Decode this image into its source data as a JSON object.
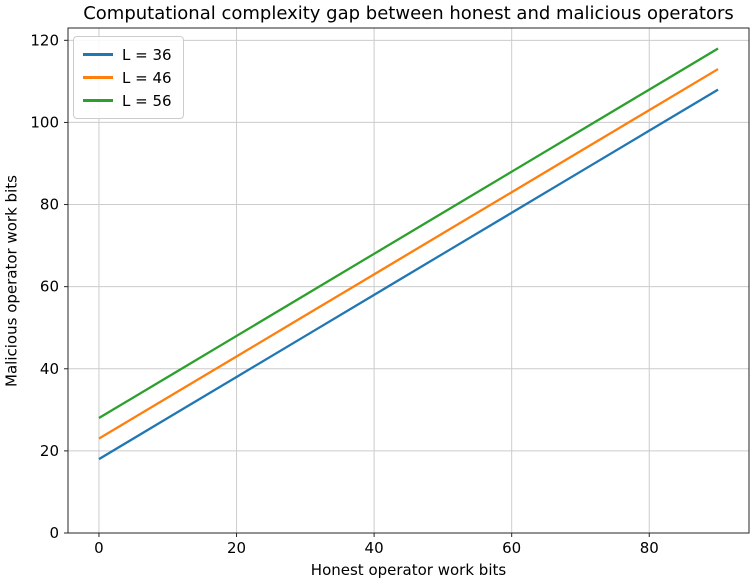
{
  "chart_data": {
    "type": "line",
    "title": "Computational complexity gap between honest and malicious operators",
    "xlabel": "Honest operator work bits",
    "ylabel": "Malicious operator work bits",
    "x": [
      0,
      10,
      20,
      30,
      40,
      50,
      60,
      70,
      80,
      90
    ],
    "series": [
      {
        "name": "L = 36",
        "color": "#1f77b4",
        "values": [
          18,
          28,
          38,
          48,
          58,
          68,
          78,
          88,
          98,
          108
        ]
      },
      {
        "name": "L = 46",
        "color": "#ff7f0e",
        "values": [
          23,
          33,
          43,
          53,
          63,
          73,
          83,
          93,
          103,
          113
        ]
      },
      {
        "name": "L = 56",
        "color": "#2ca02c",
        "values": [
          28,
          38,
          48,
          58,
          68,
          78,
          88,
          98,
          108,
          118
        ]
      }
    ],
    "xlim": [
      -4.5,
      94.5
    ],
    "ylim": [
      0,
      123
    ],
    "xticks": [
      0,
      20,
      40,
      60,
      80
    ],
    "yticks": [
      0,
      20,
      40,
      60,
      80,
      100,
      120
    ],
    "grid": true,
    "grid_color": "#cccccc",
    "axis_color": "#262626",
    "legend_position": "upper-left"
  }
}
